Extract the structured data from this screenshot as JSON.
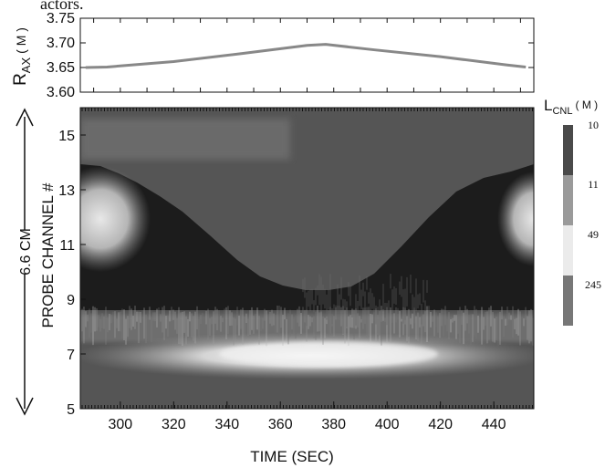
{
  "chart_data": [
    {
      "type": "line",
      "xlim": [
        285,
        455
      ],
      "ylim": [
        3.6,
        3.75
      ],
      "ylabel_main": "R",
      "ylabel_sub": "AX",
      "ylabel_unit": "( M )",
      "yticks": [
        "3.75",
        "3.70",
        "3.65",
        "3.60"
      ],
      "yvalues": [
        3.75,
        3.7,
        3.65,
        3.6
      ],
      "series": [
        {
          "x": [
            287,
            295,
            320,
            345,
            370,
            377,
            395,
            420,
            445,
            452
          ],
          "y": [
            3.65,
            3.651,
            3.662,
            3.678,
            3.695,
            3.697,
            3.686,
            3.672,
            3.655,
            3.651
          ],
          "color": "#888888"
        }
      ],
      "grid": false
    },
    {
      "type": "heatmap",
      "xlim": [
        285,
        455
      ],
      "ylim": [
        5,
        16
      ],
      "xlabel": "TIME (SEC)",
      "ylabel": "PROBE CHANNEL #",
      "xticks": [
        "300",
        "320",
        "340",
        "360",
        "380",
        "400",
        "420",
        "440"
      ],
      "xvalues": [
        300,
        320,
        340,
        360,
        380,
        400,
        420,
        440
      ],
      "yticks": [
        "15",
        "13",
        "11",
        "9",
        "7",
        "5"
      ],
      "yvalues": [
        15,
        13,
        11,
        9,
        7,
        5
      ],
      "arrow_label": "6.6 CM",
      "colorbar": {
        "title_main": "L",
        "title_sub": "CNL",
        "title_unit": "( M )",
        "labels": [
          "10",
          "11",
          "49",
          "245"
        ],
        "colors": [
          "#4a4a4a",
          "#9a9a9a",
          "#ebebeb",
          "#777777"
        ]
      },
      "colors": {
        "background": "#555555",
        "dark": "#1c1c1c",
        "light": "#d9d9d9",
        "mid": "#8a8a8a"
      }
    }
  ],
  "top_cut_text": "actors."
}
